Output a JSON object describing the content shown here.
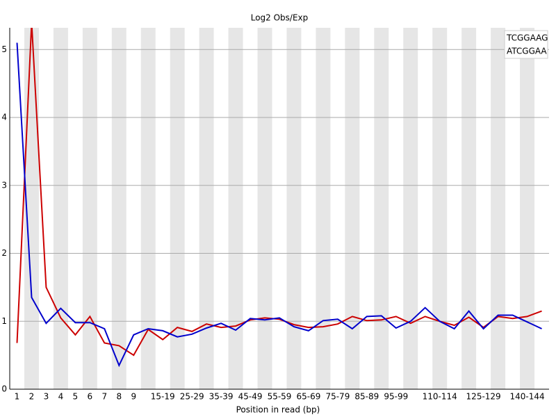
{
  "chart_data": {
    "type": "line",
    "title": "Log2 Obs/Exp",
    "x_label": "Position in read (bp)",
    "categories": [
      "1",
      "2",
      "3",
      "4",
      "5",
      "6",
      "7",
      "8",
      "9",
      null,
      "15-19",
      null,
      "25-29",
      null,
      "35-39",
      null,
      "45-49",
      null,
      "55-59",
      null,
      "65-69",
      null,
      "75-79",
      null,
      "85-89",
      null,
      "95-99",
      null,
      null,
      "110-114",
      null,
      null,
      "125-129",
      null,
      null,
      "140-144",
      null
    ],
    "series": [
      {
        "name": "TCGGAAG",
        "color": "#cc0000",
        "values": [
          0.68,
          5.4,
          1.5,
          1.05,
          0.8,
          1.07,
          0.68,
          0.64,
          0.5,
          0.88,
          0.73,
          0.91,
          0.85,
          0.96,
          0.91,
          0.93,
          1.02,
          1.05,
          1.03,
          0.95,
          0.91,
          0.92,
          0.96,
          1.07,
          1.01,
          1.02,
          1.07,
          0.97,
          1.07,
          1.0,
          0.94,
          1.06,
          0.91,
          1.07,
          1.04,
          1.07,
          1.15
        ]
      },
      {
        "name": "ATCGGAA",
        "color": "#0000cc",
        "values": [
          5.1,
          1.35,
          0.97,
          1.19,
          0.98,
          0.98,
          0.89,
          0.35,
          0.8,
          0.89,
          0.86,
          0.77,
          0.81,
          0.9,
          0.97,
          0.87,
          1.04,
          1.02,
          1.05,
          0.92,
          0.86,
          1.01,
          1.03,
          0.89,
          1.07,
          1.08,
          0.9,
          1.0,
          1.2,
          1.0,
          0.89,
          1.15,
          0.89,
          1.09,
          1.09,
          0.99,
          0.89
        ]
      }
    ],
    "ylim": [
      0,
      5.32
    ],
    "yticks": [
      0,
      1,
      2,
      3,
      4,
      5
    ],
    "grid": true,
    "legend": "top-right"
  }
}
